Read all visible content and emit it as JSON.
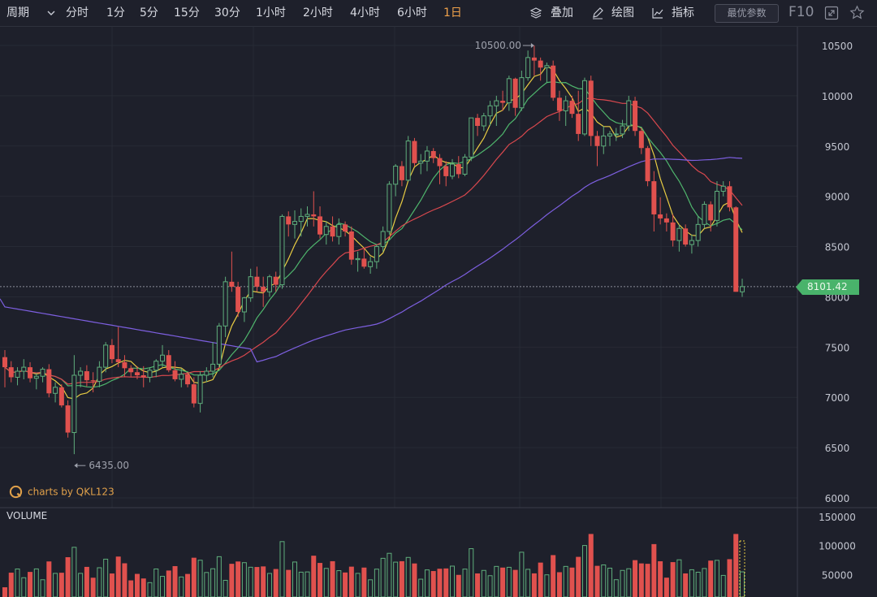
{
  "toolbar": {
    "period_label": "周期",
    "timeframes": [
      {
        "label": "分时",
        "active": false
      },
      {
        "label": "1分",
        "active": false
      },
      {
        "label": "5分",
        "active": false
      },
      {
        "label": "15分",
        "active": false
      },
      {
        "label": "30分",
        "active": false
      },
      {
        "label": "1小时",
        "active": false
      },
      {
        "label": "2小时",
        "active": false
      },
      {
        "label": "4小时",
        "active": false
      },
      {
        "label": "6小时",
        "active": false
      },
      {
        "label": "1日",
        "active": true
      }
    ],
    "overlay_label": "叠加",
    "draw_label": "绘图",
    "indicator_label": "指标",
    "optimal_params_label": "最优参数",
    "f10_label": "F10",
    "icons": [
      "chevron-down-icon",
      "layers-icon",
      "pen-icon",
      "line-chart-icon",
      "expand-icon",
      "star-icon"
    ]
  },
  "branding": {
    "text": "charts by QKL123",
    "icon": "qkl123-logo-icon"
  },
  "colors": {
    "up": "#5fae7c",
    "down": "#e0514e",
    "ma5": "#e8cc43",
    "ma10": "#4fb66d",
    "ma20": "#d9484e",
    "ma_long": "#7d5fe0",
    "price_tag": "#49b36b",
    "brand": "#e0a04a"
  },
  "chart_data": {
    "type": "candlestick",
    "price_axis": {
      "ticks": [
        6000,
        6500,
        7000,
        7500,
        8000,
        8500,
        9000,
        9500,
        10000,
        10500
      ],
      "ylim": [
        5850,
        10800
      ]
    },
    "volume_axis": {
      "label": "VOLUME",
      "ticks": [
        50000,
        100000,
        150000
      ],
      "ylim": [
        0,
        170000
      ]
    },
    "annotations": {
      "high_label": "10500.00",
      "high_value": 10500,
      "low_label": "6435.00",
      "low_value": 6435
    },
    "current_price": {
      "label": "8101.42",
      "value": 8101.42
    },
    "candles": [
      [
        7400,
        7470,
        7100,
        7300
      ],
      [
        7300,
        7360,
        7150,
        7200
      ],
      [
        7200,
        7300,
        7120,
        7260
      ],
      [
        7260,
        7380,
        7180,
        7300
      ],
      [
        7300,
        7350,
        7150,
        7190
      ],
      [
        7190,
        7240,
        7080,
        7210
      ],
      [
        7210,
        7300,
        7150,
        7280
      ],
      [
        7280,
        7330,
        7000,
        7040
      ],
      [
        7040,
        7150,
        6950,
        7100
      ],
      [
        7100,
        7130,
        6900,
        6920
      ],
      [
        6920,
        6970,
        6600,
        6650
      ],
      [
        6650,
        7420,
        6435,
        7220
      ],
      [
        7220,
        7300,
        7100,
        7260
      ],
      [
        7260,
        7320,
        7110,
        7170
      ],
      [
        7170,
        7250,
        7050,
        7160
      ],
      [
        7160,
        7360,
        7100,
        7300
      ],
      [
        7300,
        7550,
        7250,
        7520
      ],
      [
        7520,
        7580,
        7340,
        7380
      ],
      [
        7380,
        7700,
        7300,
        7350
      ],
      [
        7350,
        7420,
        7200,
        7290
      ],
      [
        7290,
        7320,
        7200,
        7250
      ],
      [
        7250,
        7310,
        7180,
        7220
      ],
      [
        7220,
        7310,
        7100,
        7200
      ],
      [
        7200,
        7300,
        7150,
        7270
      ],
      [
        7270,
        7380,
        7200,
        7360
      ],
      [
        7360,
        7520,
        7300,
        7420
      ],
      [
        7420,
        7470,
        7250,
        7270
      ],
      [
        7270,
        7360,
        7160,
        7180
      ],
      [
        7180,
        7290,
        7100,
        7230
      ],
      [
        7230,
        7250,
        7100,
        7130
      ],
      [
        7130,
        7200,
        6900,
        6940
      ],
      [
        6940,
        7260,
        6850,
        7220
      ],
      [
        7220,
        7300,
        7150,
        7260
      ],
      [
        7260,
        7550,
        7200,
        7330
      ],
      [
        7330,
        7740,
        7300,
        7710
      ],
      [
        7710,
        8200,
        7600,
        8150
      ],
      [
        8150,
        8450,
        8050,
        8100
      ],
      [
        8100,
        8150,
        7800,
        7850
      ],
      [
        7850,
        8000,
        7750,
        7990
      ],
      [
        7990,
        8280,
        7950,
        8200
      ],
      [
        8200,
        8300,
        8050,
        8100
      ],
      [
        8100,
        8200,
        7900,
        8050
      ],
      [
        8050,
        8220,
        8000,
        8200
      ],
      [
        8200,
        8250,
        8050,
        8120
      ],
      [
        8120,
        8820,
        8080,
        8800
      ],
      [
        8800,
        8850,
        8600,
        8720
      ],
      [
        8720,
        8860,
        8580,
        8750
      ],
      [
        8750,
        8880,
        8600,
        8800
      ],
      [
        8800,
        8900,
        8700,
        8820
      ],
      [
        8820,
        9050,
        8700,
        8800
      ],
      [
        8800,
        8900,
        8580,
        8620
      ],
      [
        8620,
        8750,
        8520,
        8700
      ],
      [
        8700,
        8800,
        8550,
        8600
      ],
      [
        8600,
        8780,
        8520,
        8720
      ],
      [
        8720,
        8750,
        8600,
        8650
      ],
      [
        8650,
        8700,
        8320,
        8370
      ],
      [
        8370,
        8450,
        8250,
        8380
      ],
      [
        8380,
        8480,
        8280,
        8300
      ],
      [
        8300,
        8400,
        8230,
        8350
      ],
      [
        8350,
        8520,
        8280,
        8500
      ],
      [
        8500,
        8700,
        8450,
        8650
      ],
      [
        8650,
        9150,
        8620,
        9120
      ],
      [
        9120,
        9320,
        9000,
        9300
      ],
      [
        9300,
        9350,
        9100,
        9160
      ],
      [
        9160,
        9600,
        9150,
        9550
      ],
      [
        9550,
        9580,
        9300,
        9330
      ],
      [
        9330,
        9420,
        9220,
        9350
      ],
      [
        9350,
        9500,
        9250,
        9450
      ],
      [
        9450,
        9480,
        9330,
        9380
      ],
      [
        9380,
        9420,
        9120,
        9300
      ],
      [
        9300,
        9350,
        9100,
        9200
      ],
      [
        9200,
        9370,
        9170,
        9320
      ],
      [
        9320,
        9400,
        9180,
        9220
      ],
      [
        9220,
        9420,
        9200,
        9390
      ],
      [
        9390,
        9780,
        9350,
        9780
      ],
      [
        9780,
        9820,
        9600,
        9700
      ],
      [
        9700,
        9830,
        9650,
        9800
      ],
      [
        9800,
        9950,
        9700,
        9900
      ],
      [
        9900,
        10000,
        9700,
        9950
      ],
      [
        9950,
        10050,
        9850,
        9930
      ],
      [
        9930,
        10200,
        9850,
        10170
      ],
      [
        10170,
        10180,
        9800,
        9880
      ],
      [
        9880,
        10250,
        9850,
        10180
      ],
      [
        10180,
        10450,
        10150,
        10380
      ],
      [
        10380,
        10500,
        10200,
        10350
      ],
      [
        10350,
        10380,
        10150,
        10280
      ],
      [
        10280,
        10330,
        10130,
        10300
      ],
      [
        10300,
        10350,
        9950,
        9980
      ],
      [
        9980,
        10050,
        9750,
        9850
      ],
      [
        9850,
        10000,
        9700,
        9950
      ],
      [
        9950,
        10000,
        9780,
        9820
      ],
      [
        9820,
        10050,
        9550,
        9620
      ],
      [
        9620,
        10180,
        9600,
        10150
      ],
      [
        10150,
        10200,
        9500,
        9600
      ],
      [
        9600,
        9650,
        9300,
        9500
      ],
      [
        9500,
        9700,
        9420,
        9600
      ],
      [
        9600,
        9650,
        9500,
        9620
      ],
      [
        9620,
        9680,
        9550,
        9620
      ],
      [
        9620,
        9760,
        9580,
        9700
      ],
      [
        9700,
        10000,
        9650,
        9950
      ],
      [
        9950,
        9990,
        9600,
        9650
      ],
      [
        9650,
        9680,
        9420,
        9480
      ],
      [
        9480,
        9500,
        9100,
        9150
      ],
      [
        9150,
        9250,
        8650,
        8820
      ],
      [
        8820,
        8990,
        8720,
        8780
      ],
      [
        8780,
        8830,
        8650,
        8740
      ],
      [
        8740,
        8820,
        8500,
        8560
      ],
      [
        8560,
        8720,
        8450,
        8680
      ],
      [
        8680,
        8720,
        8500,
        8520
      ],
      [
        8520,
        8620,
        8430,
        8560
      ],
      [
        8560,
        8800,
        8500,
        8720
      ],
      [
        8720,
        8950,
        8680,
        8920
      ],
      [
        8920,
        8950,
        8650,
        8760
      ],
      [
        8760,
        9150,
        8700,
        9050
      ],
      [
        9050,
        9150,
        9000,
        9100
      ],
      [
        9100,
        9150,
        8850,
        8890
      ],
      [
        8890,
        8900,
        8050,
        8050
      ],
      [
        8050,
        8180,
        8000,
        8101.42
      ]
    ],
    "volume_series": [
      [
        0,
        28000,
        "d"
      ],
      [
        8,
        52000,
        "u"
      ],
      [
        11,
        97000,
        "u"
      ],
      [
        23,
        36000,
        "d"
      ],
      [
        35,
        40000,
        "d"
      ],
      [
        41,
        64000,
        "d"
      ],
      [
        50,
        70000,
        "d"
      ],
      [
        56,
        52000,
        "u"
      ],
      [
        60,
        78000,
        "u"
      ],
      [
        69,
        60000,
        "u"
      ],
      [
        81,
        58000,
        "u"
      ],
      [
        84,
        52000,
        "d"
      ],
      [
        90,
        62000,
        "u"
      ]
    ]
  }
}
